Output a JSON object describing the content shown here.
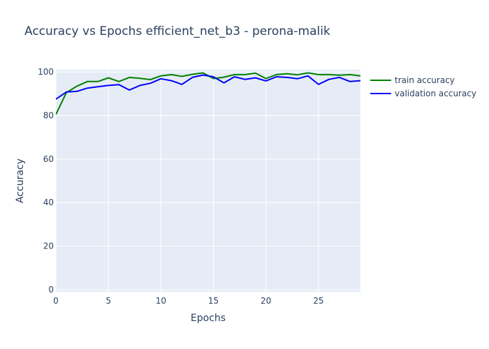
{
  "chart_data": {
    "type": "line",
    "title": "Accuracy vs Epochs efficient_net_b3 - perona-malik",
    "xlabel": "Epochs",
    "ylabel": "Accuracy",
    "xlim": [
      0,
      29
    ],
    "ylim": [
      -1,
      101
    ],
    "xticks": [
      0,
      5,
      10,
      15,
      20,
      25
    ],
    "yticks": [
      0,
      20,
      40,
      60,
      80,
      100
    ],
    "x": [
      0,
      1,
      2,
      3,
      4,
      5,
      6,
      7,
      8,
      9,
      10,
      11,
      12,
      13,
      14,
      15,
      16,
      17,
      18,
      19,
      20,
      21,
      22,
      23,
      24,
      25,
      26,
      27,
      28,
      29
    ],
    "series": [
      {
        "name": "train accuracy",
        "color": "#008000",
        "values": [
          80.5,
          90.5,
          93.5,
          95.6,
          95.6,
          97.3,
          95.6,
          97.5,
          97.1,
          96.5,
          98.2,
          98.8,
          98.0,
          98.9,
          99.6,
          97.0,
          97.6,
          98.8,
          98.8,
          99.5,
          97.0,
          98.8,
          99.2,
          98.7,
          99.6,
          98.8,
          98.8,
          98.5,
          98.8,
          98.2
        ]
      },
      {
        "name": "validation accuracy",
        "color": "#0000ff",
        "values": [
          87.5,
          90.8,
          91.1,
          92.6,
          93.2,
          93.8,
          94.2,
          91.7,
          93.8,
          94.8,
          96.9,
          96.0,
          94.3,
          97.5,
          98.6,
          97.8,
          95.0,
          97.8,
          96.6,
          97.3,
          95.9,
          97.8,
          97.5,
          96.9,
          98.2,
          94.3,
          96.6,
          97.5,
          95.6,
          96.0
        ]
      }
    ],
    "grid": true,
    "legend_position": "right",
    "plot_background": "#e5ecf6",
    "grid_color": "#ffffff"
  }
}
